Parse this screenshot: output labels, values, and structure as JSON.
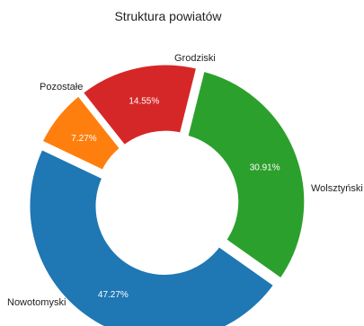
{
  "chart_data": {
    "type": "pie",
    "donut": true,
    "title": "Struktura powiatów",
    "categories": [
      "Wolsztyński",
      "Nowotomyski",
      "Pozostałe",
      "Grodziski"
    ],
    "values": [
      30.91,
      47.27,
      7.27,
      14.55
    ],
    "value_labels": [
      "30.91%",
      "47.27%",
      "7.27%",
      "14.55%"
    ],
    "colors": [
      "#2ca02c",
      "#1f77b4",
      "#ff7f0e",
      "#d62728"
    ],
    "legend": "none"
  }
}
